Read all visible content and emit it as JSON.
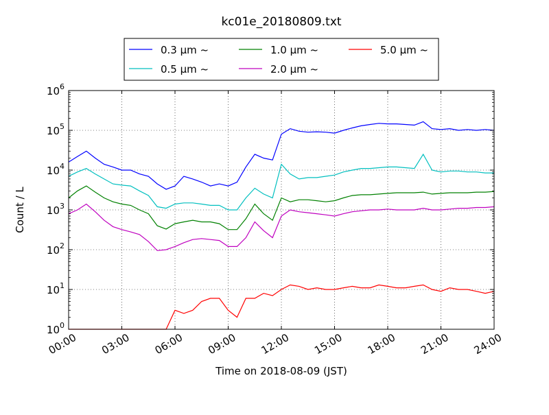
{
  "chart_data": {
    "type": "line",
    "title": "kc01e_20180809.txt",
    "xlabel": "Time on 2018-08-09 (JST)",
    "ylabel": "Count / L",
    "y_scale": "log",
    "ylim": [
      1,
      1000000
    ],
    "xlim": [
      "00:00",
      "24:00"
    ],
    "x_ticks": [
      "00:00",
      "03:00",
      "06:00",
      "09:00",
      "12:00",
      "15:00",
      "18:00",
      "21:00",
      "24:00"
    ],
    "y_ticks": [
      {
        "value": 1,
        "base": "10",
        "exp": "0"
      },
      {
        "value": 10,
        "base": "10",
        "exp": "1"
      },
      {
        "value": 100,
        "base": "10",
        "exp": "2"
      },
      {
        "value": 1000,
        "base": "10",
        "exp": "3"
      },
      {
        "value": 10000,
        "base": "10",
        "exp": "4"
      },
      {
        "value": 100000,
        "base": "10",
        "exp": "5"
      },
      {
        "value": 1000000,
        "base": "10",
        "exp": "6"
      }
    ],
    "grid": true,
    "legend_position": "top-center",
    "legend_tilde": "~",
    "x_hours": [
      0,
      0.5,
      1,
      1.5,
      2,
      2.5,
      3,
      3.5,
      4,
      4.5,
      5,
      5.5,
      6,
      6.5,
      7,
      7.5,
      8,
      8.5,
      9,
      9.5,
      10,
      10.5,
      11,
      11.5,
      12,
      12.5,
      13,
      13.5,
      14,
      14.5,
      15,
      15.5,
      16,
      16.5,
      17,
      17.5,
      18,
      18.5,
      19,
      19.5,
      20,
      20.5,
      21,
      21.5,
      22,
      22.5,
      23,
      23.5,
      24
    ],
    "series": [
      {
        "name": "0.3 μm",
        "color": "#0000ff",
        "values": [
          16000,
          22000,
          30000,
          20000,
          14000,
          12000,
          10000,
          10000,
          8000,
          7000,
          4500,
          3300,
          4000,
          7000,
          6000,
          5000,
          4000,
          4500,
          4000,
          5000,
          12000,
          25000,
          20000,
          18000,
          80000,
          110000,
          95000,
          90000,
          92000,
          90000,
          85000,
          100000,
          115000,
          130000,
          140000,
          150000,
          145000,
          145000,
          140000,
          135000,
          165000,
          110000,
          105000,
          110000,
          100000,
          105000,
          100000,
          105000,
          100000
        ]
      },
      {
        "name": "0.5 μm",
        "color": "#00bfbf",
        "values": [
          7000,
          9000,
          11000,
          8000,
          6000,
          4500,
          4200,
          4000,
          3000,
          2300,
          1200,
          1100,
          1400,
          1500,
          1500,
          1400,
          1300,
          1300,
          1000,
          1000,
          2000,
          3500,
          2500,
          2000,
          14000,
          8000,
          6000,
          6500,
          6500,
          7000,
          7500,
          9000,
          10000,
          11000,
          11000,
          11500,
          12000,
          12000,
          11500,
          11000,
          25000,
          10000,
          9000,
          9500,
          9500,
          9000,
          9000,
          8500,
          8500
        ]
      },
      {
        "name": "1.0 μm",
        "color": "#008000",
        "values": [
          2000,
          3000,
          4000,
          2800,
          2000,
          1600,
          1400,
          1300,
          1000,
          800,
          400,
          330,
          450,
          500,
          550,
          500,
          500,
          450,
          320,
          320,
          600,
          1400,
          800,
          550,
          2000,
          1600,
          1800,
          1800,
          1700,
          1600,
          1700,
          2000,
          2300,
          2400,
          2400,
          2500,
          2600,
          2700,
          2700,
          2700,
          2800,
          2500,
          2600,
          2700,
          2700,
          2700,
          2800,
          2800,
          2900
        ]
      },
      {
        "name": "2.0 μm",
        "color": "#bf00bf",
        "values": [
          800,
          1000,
          1400,
          900,
          550,
          380,
          320,
          280,
          240,
          160,
          95,
          100,
          120,
          150,
          180,
          190,
          180,
          170,
          120,
          120,
          200,
          500,
          300,
          200,
          700,
          1000,
          900,
          850,
          800,
          750,
          700,
          800,
          900,
          950,
          1000,
          1000,
          1050,
          1000,
          1000,
          1000,
          1100,
          1000,
          1000,
          1050,
          1100,
          1100,
          1150,
          1150,
          1200
        ]
      },
      {
        "name": "5.0 μm",
        "color": "#ff0000",
        "values": [
          1,
          1,
          1,
          1,
          1,
          1,
          1,
          1,
          1,
          1,
          1,
          1,
          3,
          2.5,
          3,
          5,
          6,
          6,
          3,
          2,
          6,
          6,
          8,
          7,
          10,
          13,
          12,
          10,
          11,
          10,
          10,
          11,
          12,
          11,
          11,
          13,
          12,
          11,
          11,
          12,
          13,
          10,
          9,
          11,
          10,
          10,
          9,
          8,
          9
        ]
      }
    ]
  }
}
